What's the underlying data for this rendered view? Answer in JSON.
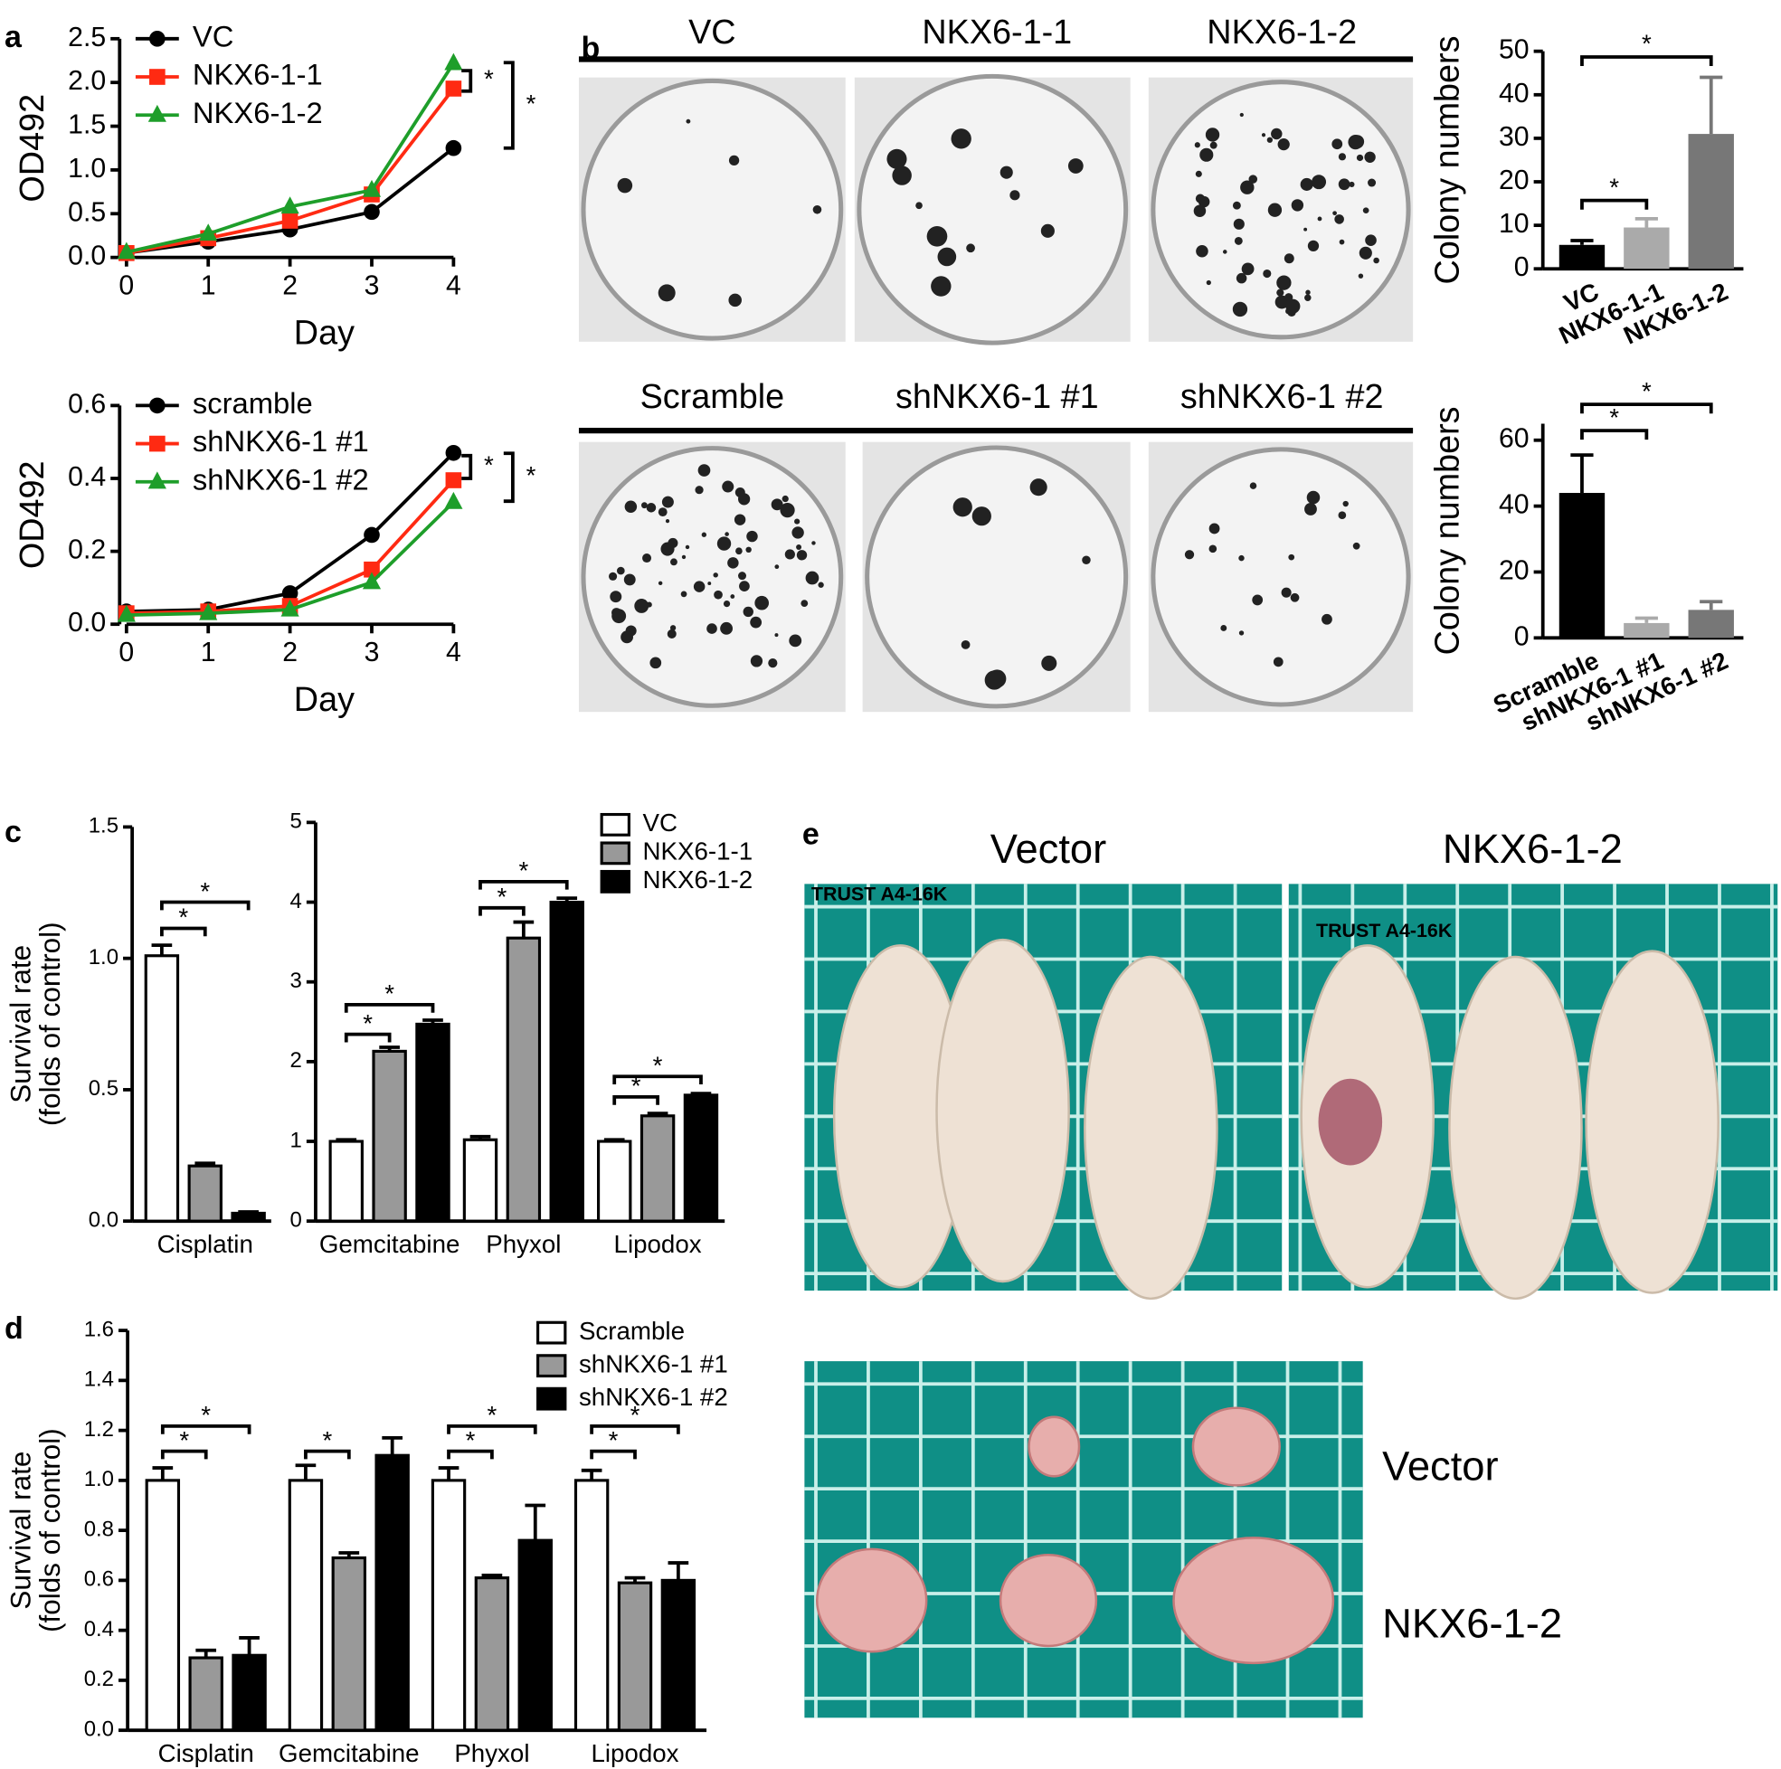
{
  "panel_labels": [
    "a",
    "b",
    "c",
    "d",
    "e"
  ],
  "dishes": {
    "top_titles": [
      "VC",
      "NKX6-1-1",
      "NKX6-1-2"
    ],
    "bottom_titles": [
      "Scramble",
      "shNKX6-1 #1",
      "shNKX6-1 #2"
    ]
  },
  "photos": {
    "titles": [
      "Vector",
      "NKX6-1-2"
    ],
    "row_labels": [
      "Vector",
      "NKX6-1-2"
    ],
    "mat_labels": [
      "TRUST A4-16K",
      "TRUST A4-16K"
    ]
  },
  "chart_data": [
    {
      "type": "line",
      "ylabel": "OD492",
      "xlabel": "Day",
      "x": [
        0,
        1,
        2,
        3,
        4
      ],
      "xlim": [
        0,
        4
      ],
      "xticks": [
        0,
        1,
        2,
        3,
        4
      ],
      "ylim": [
        0,
        2.5
      ],
      "yticks": [
        {
          "value": 0,
          "label": "0.0"
        },
        0.5,
        {
          "value": 1,
          "label": "1.0"
        },
        1.5,
        {
          "value": 2,
          "label": "2.0"
        },
        2.5
      ],
      "series": [
        {
          "name": "VC",
          "color": "#000000",
          "marker": "circle",
          "values": [
            0.05,
            0.18,
            0.32,
            0.52,
            1.25
          ]
        },
        {
          "name": "NKX6-1-1",
          "color": "#ff2a12",
          "marker": "square",
          "values": [
            0.05,
            0.22,
            0.42,
            0.72,
            1.93
          ]
        },
        {
          "name": "NKX6-1-2",
          "color": "#1e9e2a",
          "marker": "triangle",
          "values": [
            0.06,
            0.27,
            0.58,
            0.77,
            2.22
          ]
        }
      ],
      "annotations": [
        "*",
        "*"
      ]
    },
    {
      "type": "line",
      "ylabel": "OD492",
      "xlabel": "Day",
      "x": [
        0,
        1,
        2,
        3,
        4
      ],
      "xlim": [
        0,
        4
      ],
      "xticks": [
        0,
        1,
        2,
        3,
        4
      ],
      "ylim": [
        0,
        0.6
      ],
      "yticks": [
        {
          "value": 0,
          "label": "0.0"
        },
        0.2,
        0.4,
        0.6
      ],
      "series": [
        {
          "name": "scramble",
          "color": "#000000",
          "marker": "circle",
          "values": [
            0.035,
            0.04,
            0.085,
            0.245,
            0.47
          ]
        },
        {
          "name": "shNKX6-1 #1",
          "color": "#ff2a12",
          "marker": "square",
          "values": [
            0.03,
            0.035,
            0.05,
            0.15,
            0.395
          ]
        },
        {
          "name": "shNKX6-1 #2",
          "color": "#1e9e2a",
          "marker": "triangle",
          "values": [
            0.025,
            0.03,
            0.04,
            0.115,
            0.335
          ]
        }
      ],
      "annotations": [
        "*",
        "*"
      ]
    },
    {
      "type": "bar",
      "ylabel": "Colony numbers",
      "categories": [
        "VC",
        "NKX6-1-1",
        "NKX6-1-2"
      ],
      "values": [
        5.5,
        9.5,
        31
      ],
      "errors": [
        1,
        2,
        13
      ],
      "colors": [
        "#000000",
        "#aaaaaa",
        "#777777"
      ],
      "ylim": [
        0,
        50
      ],
      "yticks": [
        0,
        10,
        20,
        30,
        40,
        50
      ],
      "annotations": [
        "*",
        "*"
      ]
    },
    {
      "type": "bar",
      "ylabel": "Colony numbers",
      "categories": [
        "Scramble",
        "shNKX6-1 #1",
        "shNKX6-1 #2"
      ],
      "values": [
        44,
        4.5,
        8.5
      ],
      "errors": [
        11.5,
        1.5,
        2.5
      ],
      "colors": [
        "#000000",
        "#aaaaaa",
        "#777777"
      ],
      "ylim": [
        0,
        65
      ],
      "yticks": [
        0,
        20,
        40,
        60
      ],
      "annotations": [
        "*",
        "*"
      ]
    },
    {
      "type": "grouped_bar",
      "ylabel": [
        "Survival rate",
        "(folds of control)"
      ],
      "categories": [
        "Cisplatin"
      ],
      "ylim": [
        0,
        1.5
      ],
      "yticks": [
        {
          "value": 0,
          "label": "0.0"
        },
        0.5,
        {
          "value": 1,
          "label": "1.0"
        },
        1.5
      ],
      "series": [
        {
          "color": "#ffffff",
          "values": [
            1.01
          ],
          "errors": [
            0.04
          ]
        },
        {
          "color": "#999999",
          "values": [
            0.21
          ],
          "errors": [
            0.01
          ]
        },
        {
          "color": "#000000",
          "values": [
            0.03
          ],
          "errors": [
            0.005
          ]
        }
      ],
      "annotations": [
        "*",
        "*"
      ]
    },
    {
      "type": "grouped_bar",
      "categories": [
        "Gemcitabine",
        "Phyxol",
        "Lipodox"
      ],
      "ylim": [
        0,
        5
      ],
      "yticks": [
        0,
        1,
        2,
        3,
        4,
        5
      ],
      "series": [
        {
          "name": "VC",
          "color": "#ffffff",
          "values": [
            1.0,
            1.02,
            1.0
          ],
          "errors": [
            0.02,
            0.04,
            0.02
          ]
        },
        {
          "name": "NKX6-1-1",
          "color": "#999999",
          "values": [
            2.13,
            3.55,
            1.32
          ],
          "errors": [
            0.05,
            0.2,
            0.03
          ]
        },
        {
          "name": "NKX6-1-2",
          "color": "#000000",
          "values": [
            2.47,
            4.0,
            1.58
          ],
          "errors": [
            0.05,
            0.05,
            0.02
          ]
        }
      ],
      "annotations": [
        "*",
        "*",
        "*",
        "*",
        "*",
        "*"
      ]
    },
    {
      "type": "grouped_bar",
      "ylabel": [
        "Survival rate",
        "(folds of control)"
      ],
      "categories": [
        "Cisplatin",
        "Gemcitabine",
        "Phyxol",
        "Lipodox"
      ],
      "ylim": [
        0,
        1.6
      ],
      "yticks": [
        {
          "value": 0,
          "label": "0.0"
        },
        0.2,
        0.4,
        0.6,
        0.8,
        {
          "value": 1,
          "label": "1.0"
        },
        1.2,
        1.4,
        1.6
      ],
      "series": [
        {
          "name": "Scramble",
          "color": "#ffffff",
          "values": [
            1.0,
            1.0,
            1.0,
            1.0
          ],
          "errors": [
            0.05,
            0.06,
            0.05,
            0.04
          ]
        },
        {
          "name": "shNKX6-1 #1",
          "color": "#999999",
          "values": [
            0.29,
            0.69,
            0.61,
            0.59
          ],
          "errors": [
            0.03,
            0.02,
            0.01,
            0.02
          ]
        },
        {
          "name": "shNKX6-1 #2",
          "color": "#000000",
          "values": [
            0.3,
            1.1,
            0.76,
            0.6
          ],
          "errors": [
            0.07,
            0.07,
            0.14,
            0.07
          ]
        }
      ],
      "annotations": [
        "*",
        "*",
        "*",
        "*",
        "*",
        "*",
        "*"
      ]
    }
  ]
}
